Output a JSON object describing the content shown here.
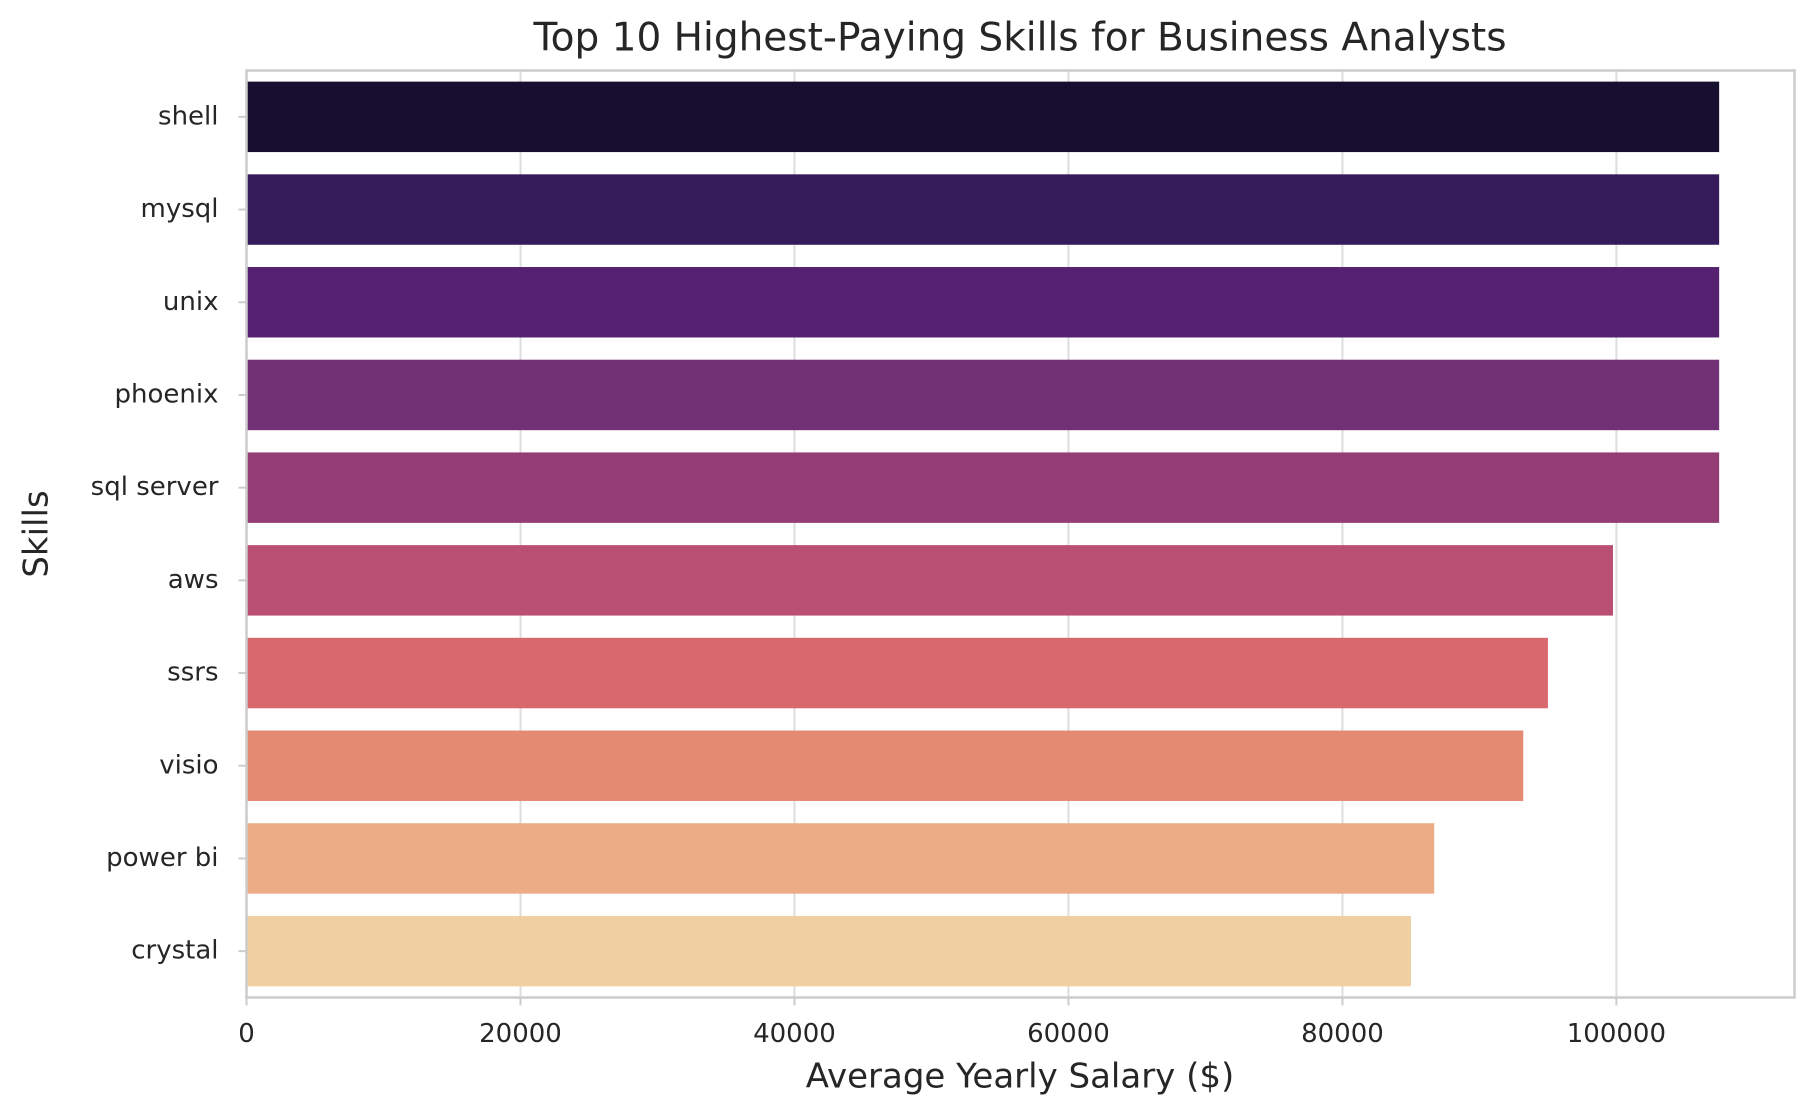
{
  "chart_data": {
    "type": "bar",
    "orientation": "horizontal",
    "title": "Top 10 Highest-Paying Skills for Business Analysts",
    "xlabel": "Average Yearly Salary ($)",
    "ylabel": "Skills",
    "xlim": [
      0,
      113000
    ],
    "xticks": [
      0,
      20000,
      40000,
      60000,
      80000,
      100000
    ],
    "xtick_labels": [
      "0",
      "20000",
      "40000",
      "60000",
      "80000",
      "100000"
    ],
    "grid": "vertical",
    "categories": [
      "shell",
      "mysql",
      "unix",
      "phoenix",
      "sql server",
      "aws",
      "ssrs",
      "visio",
      "power bi",
      "crystal"
    ],
    "values": [
      107500,
      107500,
      107500,
      107500,
      107500,
      99750,
      95000,
      93200,
      86700,
      85000
    ],
    "colors": [
      "#160f2f",
      "#361b5a",
      "#552170",
      "#723075",
      "#943d75",
      "#ba4f74",
      "#d7686e",
      "#e48a72",
      "#ebac86",
      "#f0d0a3"
    ]
  }
}
